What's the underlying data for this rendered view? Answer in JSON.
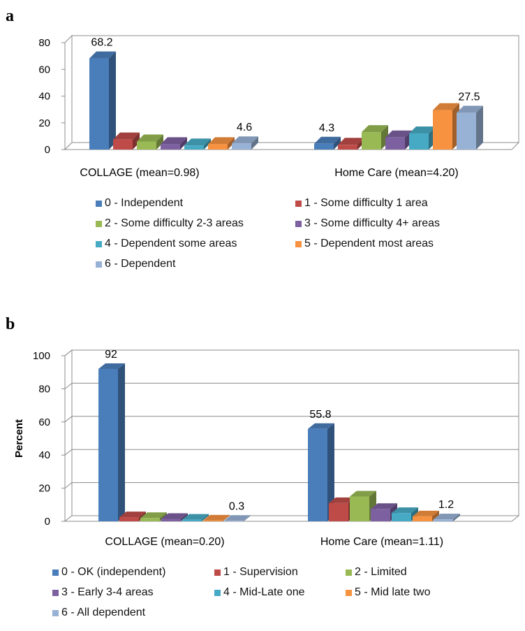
{
  "chart_data": [
    {
      "type": "bar",
      "panel": "a",
      "categories": [
        "COLLAGE (mean=0.98)",
        "Home Care (mean=4.20)"
      ],
      "ylim": [
        0,
        80
      ],
      "yticks": [
        0,
        20,
        40,
        60,
        80
      ],
      "ylabel": "",
      "grid": false,
      "legend_position": "bottom",
      "series": [
        {
          "name": "0 - Independent",
          "values": [
            68.2,
            4.3
          ],
          "color": "#4a7ebb"
        },
        {
          "name": "1 - Some difficulty 1 area",
          "values": [
            7.5,
            3.5
          ],
          "color": "#be4b48"
        },
        {
          "name": "2 - Some difficulty  2-3 areas",
          "values": [
            6,
            13
          ],
          "color": "#98b954"
        },
        {
          "name": "3 - Some difficulty 4+ areas",
          "values": [
            4,
            9
          ],
          "color": "#7d60a0"
        },
        {
          "name": "4 - Dependent some areas",
          "values": [
            3,
            12
          ],
          "color": "#46aac5"
        },
        {
          "name": "5 - Dependent most areas",
          "values": [
            4,
            29.5
          ],
          "color": "#f69240"
        },
        {
          "name": "6 - Dependent",
          "values": [
            4.6,
            27.5
          ],
          "color": "#98b2d5"
        }
      ],
      "data_labels": [
        {
          "series": 0,
          "category": 0,
          "text": "68.2"
        },
        {
          "series": 6,
          "category": 0,
          "text": "4.6"
        },
        {
          "series": 0,
          "category": 1,
          "text": "4.3"
        },
        {
          "series": 6,
          "category": 1,
          "text": "27.5"
        }
      ]
    },
    {
      "type": "bar",
      "panel": "b",
      "categories": [
        "COLLAGE (mean=0.20)",
        "Home Care (mean=1.11)"
      ],
      "ylim": [
        0,
        100
      ],
      "yticks": [
        0,
        20,
        40,
        60,
        80,
        100
      ],
      "ylabel": "Percent",
      "grid": true,
      "legend_position": "bottom",
      "series": [
        {
          "name": "0 - OK (independent)",
          "values": [
            92,
            55.8
          ],
          "color": "#4a7ebb"
        },
        {
          "name": "1 - Supervision",
          "values": [
            2.5,
            11
          ],
          "color": "#be4b48"
        },
        {
          "name": "2 - Limited",
          "values": [
            2,
            15
          ],
          "color": "#98b954"
        },
        {
          "name": "3 - Early 3-4 areas",
          "values": [
            1.5,
            7.5
          ],
          "color": "#7d60a0"
        },
        {
          "name": "4 - Mid-Late one",
          "values": [
            1,
            5
          ],
          "color": "#46aac5"
        },
        {
          "name": "5 - Mid late two",
          "values": [
            0.5,
            3
          ],
          "color": "#f69240"
        },
        {
          "name": "6 - All dependent",
          "values": [
            0.3,
            1.2
          ],
          "color": "#98b2d5"
        }
      ],
      "data_labels": [
        {
          "series": 0,
          "category": 0,
          "text": "92"
        },
        {
          "series": 6,
          "category": 0,
          "text": "0.3"
        },
        {
          "series": 0,
          "category": 1,
          "text": "55.8"
        },
        {
          "series": 6,
          "category": 1,
          "text": "1.2"
        }
      ]
    }
  ]
}
